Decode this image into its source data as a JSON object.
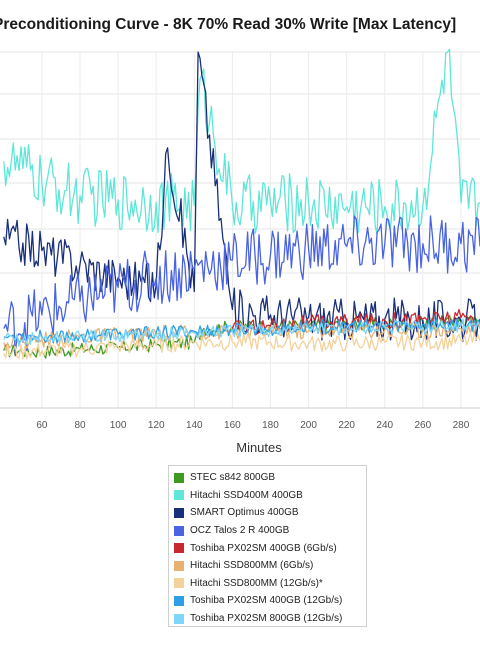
{
  "chart_data": {
    "type": "line",
    "title": "Preconditioning Curve - 8K 70% Read 30% Write [Max Latency]",
    "xlabel": "Minutes",
    "ylabel": "",
    "xlim": [
      38,
      290
    ],
    "x_ticks": [
      60,
      80,
      100,
      120,
      140,
      160,
      180,
      200,
      220,
      240,
      260,
      280
    ],
    "grid": true,
    "legend_position": "bottom",
    "series": [
      {
        "name": "STEC s842 800GB",
        "color": "#3f9a1f",
        "x": [
          40,
          60,
          80,
          100,
          120,
          140,
          145,
          160,
          180,
          200,
          220,
          240,
          260,
          280,
          290
        ],
        "y": [
          4.2,
          4.1,
          4.3,
          4.4,
          4.6,
          4.8,
          5.8,
          5.9,
          6.0,
          6.0,
          6.1,
          6.1,
          6.2,
          6.3,
          6.2
        ]
      },
      {
        "name": "Hitachi SSD400M 400GB",
        "color": "#5fe6d8",
        "x": [
          40,
          50,
          60,
          80,
          100,
          120,
          140,
          143,
          160,
          180,
          200,
          220,
          240,
          260,
          273,
          280,
          290
        ],
        "y": [
          18,
          17.5,
          16.5,
          15.5,
          15.2,
          15,
          14.8,
          24,
          14.8,
          15,
          15,
          14.7,
          14.7,
          14.8,
          26,
          15,
          15
        ]
      },
      {
        "name": "SMART Optimus 400GB",
        "color": "#1a2f7a",
        "x": [
          40,
          60,
          80,
          100,
          120,
          126,
          140,
          142,
          160,
          180,
          200,
          220,
          240,
          260,
          280,
          290
        ],
        "y": [
          12.5,
          11.5,
          10.5,
          9.5,
          9.0,
          19,
          8.5,
          26,
          7.2,
          6.8,
          6.6,
          6.5,
          6.5,
          6.4,
          6.4,
          6.3
        ]
      },
      {
        "name": "OCZ Talos 2 R 400GB",
        "color": "#4a63e0",
        "x": [
          40,
          60,
          80,
          100,
          120,
          140,
          160,
          180,
          200,
          220,
          240,
          260,
          280,
          290
        ],
        "y": [
          5.8,
          6.8,
          7.8,
          8.8,
          9.5,
          10.2,
          10.8,
          11.2,
          11.6,
          11.8,
          12,
          12,
          12,
          11.8
        ]
      },
      {
        "name": "Toshiba PX02SM 400GB (6Gb/s)",
        "color": "#c8282d",
        "x": [
          160,
          180,
          200,
          220,
          240,
          260,
          280,
          290
        ],
        "y": [
          5.8,
          6.0,
          6.2,
          6.3,
          6.4,
          6.5,
          6.6,
          6.5
        ]
      },
      {
        "name": "Hitachi SSD800MM (6Gb/s)",
        "color": "#e7b271",
        "x": [
          40,
          60,
          80,
          100,
          120,
          140,
          160,
          180,
          200,
          220,
          240,
          260,
          280,
          290
        ],
        "y": [
          4.8,
          5.0,
          5.2,
          5.3,
          5.4,
          5.5,
          5.6,
          5.6,
          5.6,
          5.7,
          5.7,
          5.7,
          5.8,
          5.8
        ]
      },
      {
        "name": "Hitachi SSD800MM (12Gb/s)*",
        "color": "#f3d29c",
        "x": [
          40,
          60,
          80,
          100,
          120,
          140,
          160,
          180,
          200,
          220,
          240,
          260,
          280,
          290
        ],
        "y": [
          4.0,
          4.2,
          4.3,
          4.5,
          4.6,
          4.8,
          4.8,
          4.8,
          4.7,
          4.7,
          4.8,
          4.8,
          4.9,
          4.9
        ]
      },
      {
        "name": "Toshiba PX02SM 400GB (12Gb/s)",
        "color": "#2e9fe6",
        "x": [
          40,
          60,
          80,
          100,
          120,
          140,
          160,
          180,
          200,
          220,
          240,
          260,
          280,
          290
        ],
        "y": [
          5.2,
          5.2,
          5.3,
          5.4,
          5.5,
          5.6,
          5.7,
          5.8,
          5.9,
          6.0,
          6.0,
          6.1,
          6.1,
          6.1
        ]
      },
      {
        "name": "Toshiba PX02SM 800GB (12Gb/s)",
        "color": "#7fd6f7",
        "x": [
          40,
          60,
          80,
          100,
          120,
          140,
          160,
          180,
          200,
          220,
          240,
          260,
          280,
          290
        ],
        "y": [
          5.0,
          5.1,
          5.2,
          5.3,
          5.4,
          5.5,
          5.6,
          5.7,
          5.8,
          5.8,
          5.9,
          5.9,
          6.0,
          6.0
        ]
      }
    ]
  }
}
